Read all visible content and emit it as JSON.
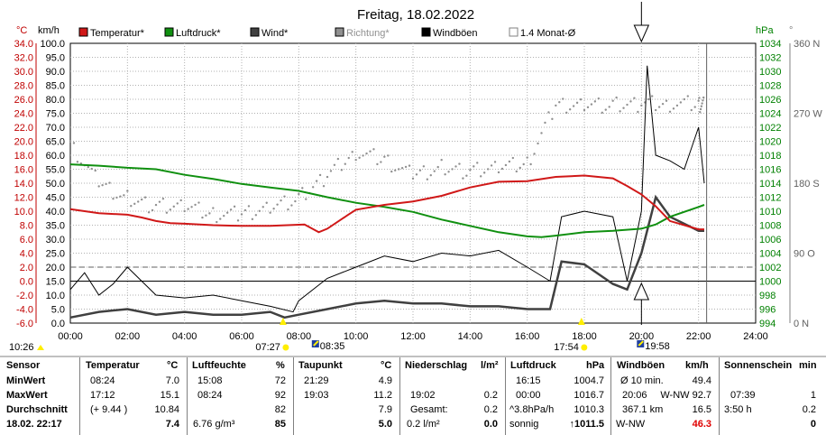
{
  "title": "Freitag, 18.02.2022",
  "colors": {
    "temperatur": "#d01818",
    "luftdruck": "#109010",
    "wind": "#404040",
    "richtung": "#909090",
    "windboeen": "#000000",
    "left_axis": "#c00000",
    "right_axis": "#008000",
    "sun": "#ffee00"
  },
  "chart_data": {
    "type": "line",
    "title": "Freitag, 18.02.2022",
    "legend": [
      {
        "label": "Temperatur*",
        "color": "#d01818",
        "style": "filled"
      },
      {
        "label": "Luftdruck*",
        "color": "#109010",
        "style": "filled"
      },
      {
        "label": "Wind*",
        "color": "#404040",
        "style": "filled"
      },
      {
        "label": "Richtung*",
        "color": "#909090",
        "style": "filled"
      },
      {
        "label": "Windböen",
        "color": "#000000",
        "style": "filled"
      },
      {
        "label": "1.4 Monat-Ø",
        "color": "#808080",
        "style": "outline"
      }
    ],
    "axes": {
      "temp_unit": "°C",
      "wind_unit": "km/h",
      "pressure_unit": "hPa",
      "direction_unit": "°",
      "temp_ticks": [
        "34.0",
        "32.0",
        "30.0",
        "28.0",
        "26.0",
        "24.0",
        "22.0",
        "20.0",
        "18.0",
        "16.0",
        "14.0",
        "12.0",
        "10.0",
        "8.0",
        "6.0",
        "4.0",
        "2.0",
        "0.0",
        "-2.0",
        "-4.0",
        "-6.0"
      ],
      "wind_ticks": [
        "100.0",
        "95.0",
        "90.0",
        "85.0",
        "80.0",
        "75.0",
        "70.0",
        "65.0",
        "60.0",
        "55.0",
        "50.0",
        "45.0",
        "40.0",
        "35.0",
        "30.0",
        "25.0",
        "20.0",
        "15.0",
        "10.0",
        "5.0",
        "0.0"
      ],
      "pressure_ticks": [
        "1034",
        "1032",
        "1030",
        "1028",
        "1026",
        "1024",
        "1022",
        "1020",
        "1018",
        "1016",
        "1014",
        "1012",
        "1010",
        "1008",
        "1006",
        "1004",
        "1002",
        "1000",
        "998",
        "996",
        "994"
      ],
      "direction_ticks": [
        "360 N",
        "270 W",
        "180 S",
        "90 O",
        "0 N"
      ],
      "time_ticks": [
        "00:00",
        "02:00",
        "04:00",
        "06:00",
        "08:00",
        "10:00",
        "12:00",
        "14:00",
        "16:00",
        "18:00",
        "20:00",
        "22:00",
        "24:00"
      ],
      "temp_range": [
        -6,
        34
      ],
      "wind_range": [
        0,
        100
      ],
      "pressure_range": [
        994,
        1034
      ],
      "direction_range": [
        0,
        360
      ],
      "time_range": [
        0,
        24
      ]
    },
    "monthly_avg_temp": 2.0,
    "gust_peak_marker_time": 20.0,
    "series": [
      {
        "name": "Temperatur*",
        "unit": "°C",
        "x": [
          0,
          1,
          2,
          2.5,
          3,
          3.5,
          4,
          5,
          6,
          7,
          8.2,
          8.7,
          9,
          9.7,
          10,
          11,
          12,
          13,
          14,
          15,
          16,
          17,
          18,
          19,
          19.5,
          20,
          20.5,
          21,
          22,
          22.2
        ],
        "values": [
          10.3,
          9.7,
          9.5,
          9.1,
          8.6,
          8.3,
          8.2,
          8.0,
          7.9,
          7.9,
          8.1,
          7.0,
          7.5,
          9.4,
          10.2,
          10.9,
          11.4,
          12.2,
          13.4,
          14.2,
          14.3,
          14.9,
          15.1,
          14.7,
          13.6,
          12.4,
          10.7,
          8.6,
          7.4,
          7.4
        ]
      },
      {
        "name": "Luftdruck*",
        "unit": "hPa",
        "x": [
          0,
          1,
          2,
          3,
          4,
          5,
          6,
          7,
          8,
          9,
          10,
          11,
          12,
          13,
          14,
          15,
          16,
          16.5,
          17,
          18,
          19,
          20,
          20.5,
          21,
          22,
          22.2
        ],
        "values": [
          1016.7,
          1016.5,
          1016.2,
          1016.0,
          1015.2,
          1014.6,
          1013.9,
          1013.4,
          1012.9,
          1012.0,
          1011.2,
          1010.6,
          1009.9,
          1008.8,
          1007.9,
          1007.0,
          1006.4,
          1006.3,
          1006.5,
          1007.0,
          1007.2,
          1007.5,
          1008.1,
          1009.2,
          1010.6,
          1010.9
        ]
      },
      {
        "name": "Wind*",
        "unit": "km/h",
        "x": [
          0,
          1,
          2,
          3,
          4,
          5,
          6,
          7,
          7.5,
          8,
          9,
          10,
          11,
          12,
          13,
          14,
          15,
          16,
          16.8,
          17.2,
          18,
          19,
          19.5,
          20,
          20.5,
          21,
          22,
          22.2
        ],
        "values": [
          2,
          4,
          5,
          3,
          4,
          3,
          3,
          4,
          2,
          3,
          5,
          7,
          8,
          7,
          7,
          6,
          6,
          5,
          5,
          22,
          21,
          14,
          12,
          25,
          45,
          38,
          33,
          33
        ]
      },
      {
        "name": "Richtung*",
        "unit": "°",
        "x": [
          0,
          1,
          2,
          3,
          4,
          5,
          6,
          7,
          8,
          9,
          10,
          11,
          12,
          13,
          14,
          15,
          16,
          17,
          18,
          19,
          20,
          21,
          22,
          22.2
        ],
        "values": [
          230,
          180,
          160,
          150,
          150,
          140,
          140,
          150,
          160,
          190,
          220,
          210,
          190,
          200,
          195,
          200,
          205,
          280,
          282,
          280,
          282,
          282,
          282,
          280
        ]
      },
      {
        "name": "Windböen",
        "unit": "km/h",
        "x": [
          0,
          0.5,
          1,
          1.5,
          2,
          3,
          4,
          5,
          6,
          7,
          7.8,
          8,
          9,
          10,
          11,
          12,
          13,
          14,
          15,
          16,
          16.8,
          17.2,
          18,
          19,
          19.5,
          20,
          20.2,
          20.5,
          21,
          21.5,
          22,
          22.2
        ],
        "values": [
          12,
          18,
          10,
          14,
          20,
          10,
          9,
          10,
          8,
          6,
          4,
          8,
          16,
          20,
          24,
          22,
          25,
          24,
          26,
          20,
          15,
          38,
          40,
          38,
          15,
          40,
          92,
          60,
          58,
          55,
          70,
          50
        ]
      }
    ]
  },
  "markers": {
    "sunrise": "07:27",
    "sunset": "17:54",
    "moonrise": "08:35",
    "moonset": "19:58",
    "start_time": "10:26"
  },
  "table": {
    "headers": {
      "sensor": "Sensor",
      "temperatur": "Temperatur",
      "temperatur_unit": "°C",
      "feuchte": "Luftfeuchte",
      "feuchte_unit": "%",
      "taupunkt": "Taupunkt",
      "taupunkt_unit": "°C",
      "niederschlag": "Niederschlag",
      "niederschlag_unit": "l/m²",
      "luftdruck": "Luftdruck",
      "luftdruck_unit": "hPa",
      "boeen": "Windböen",
      "boeen_unit": "km/h",
      "sonne": "Sonnenschein",
      "sonne_unit": "min"
    },
    "row_labels": [
      "MinWert",
      "MaxWert",
      "Durchschnitt",
      "18.02. 22:17"
    ],
    "temperatur": [
      [
        "08:24",
        "7.0"
      ],
      [
        "17:12",
        "15.1"
      ],
      [
        "(+ 9.44 )",
        "10.84"
      ],
      [
        "",
        "7.4"
      ]
    ],
    "feuchte": [
      [
        "15:08",
        "72"
      ],
      [
        "08:24",
        "92"
      ],
      [
        "",
        "82"
      ],
      [
        "6.76 g/m³",
        "85"
      ]
    ],
    "taupunkt": [
      [
        "21:29",
        "4.9"
      ],
      [
        "19:03",
        "11.2"
      ],
      [
        "",
        "7.9"
      ],
      [
        "",
        "5.0"
      ]
    ],
    "niederschlag": [
      [
        "",
        ""
      ],
      [
        "19:02",
        "0.2"
      ],
      [
        "Gesamt:",
        "0.2"
      ],
      [
        "0.2 l/m²",
        "0.0"
      ]
    ],
    "luftdruck": [
      [
        "16:15",
        "1004.7"
      ],
      [
        "00:00",
        "1016.7"
      ],
      [
        "^3.8hPa/h",
        "1010.3"
      ],
      [
        "sonnig",
        "↑1011.5"
      ]
    ],
    "boeen": [
      [
        "Ø 10 min.",
        "49.4"
      ],
      [
        "20:06",
        "W-NW 92.7"
      ],
      [
        "367.1 km",
        "16.5"
      ],
      [
        "W-NW",
        "46.3"
      ]
    ],
    "sonne": [
      [
        "",
        ""
      ],
      [
        "07:39",
        "1"
      ],
      [
        "3:50 h",
        "0.2"
      ],
      [
        "",
        "0"
      ]
    ]
  }
}
